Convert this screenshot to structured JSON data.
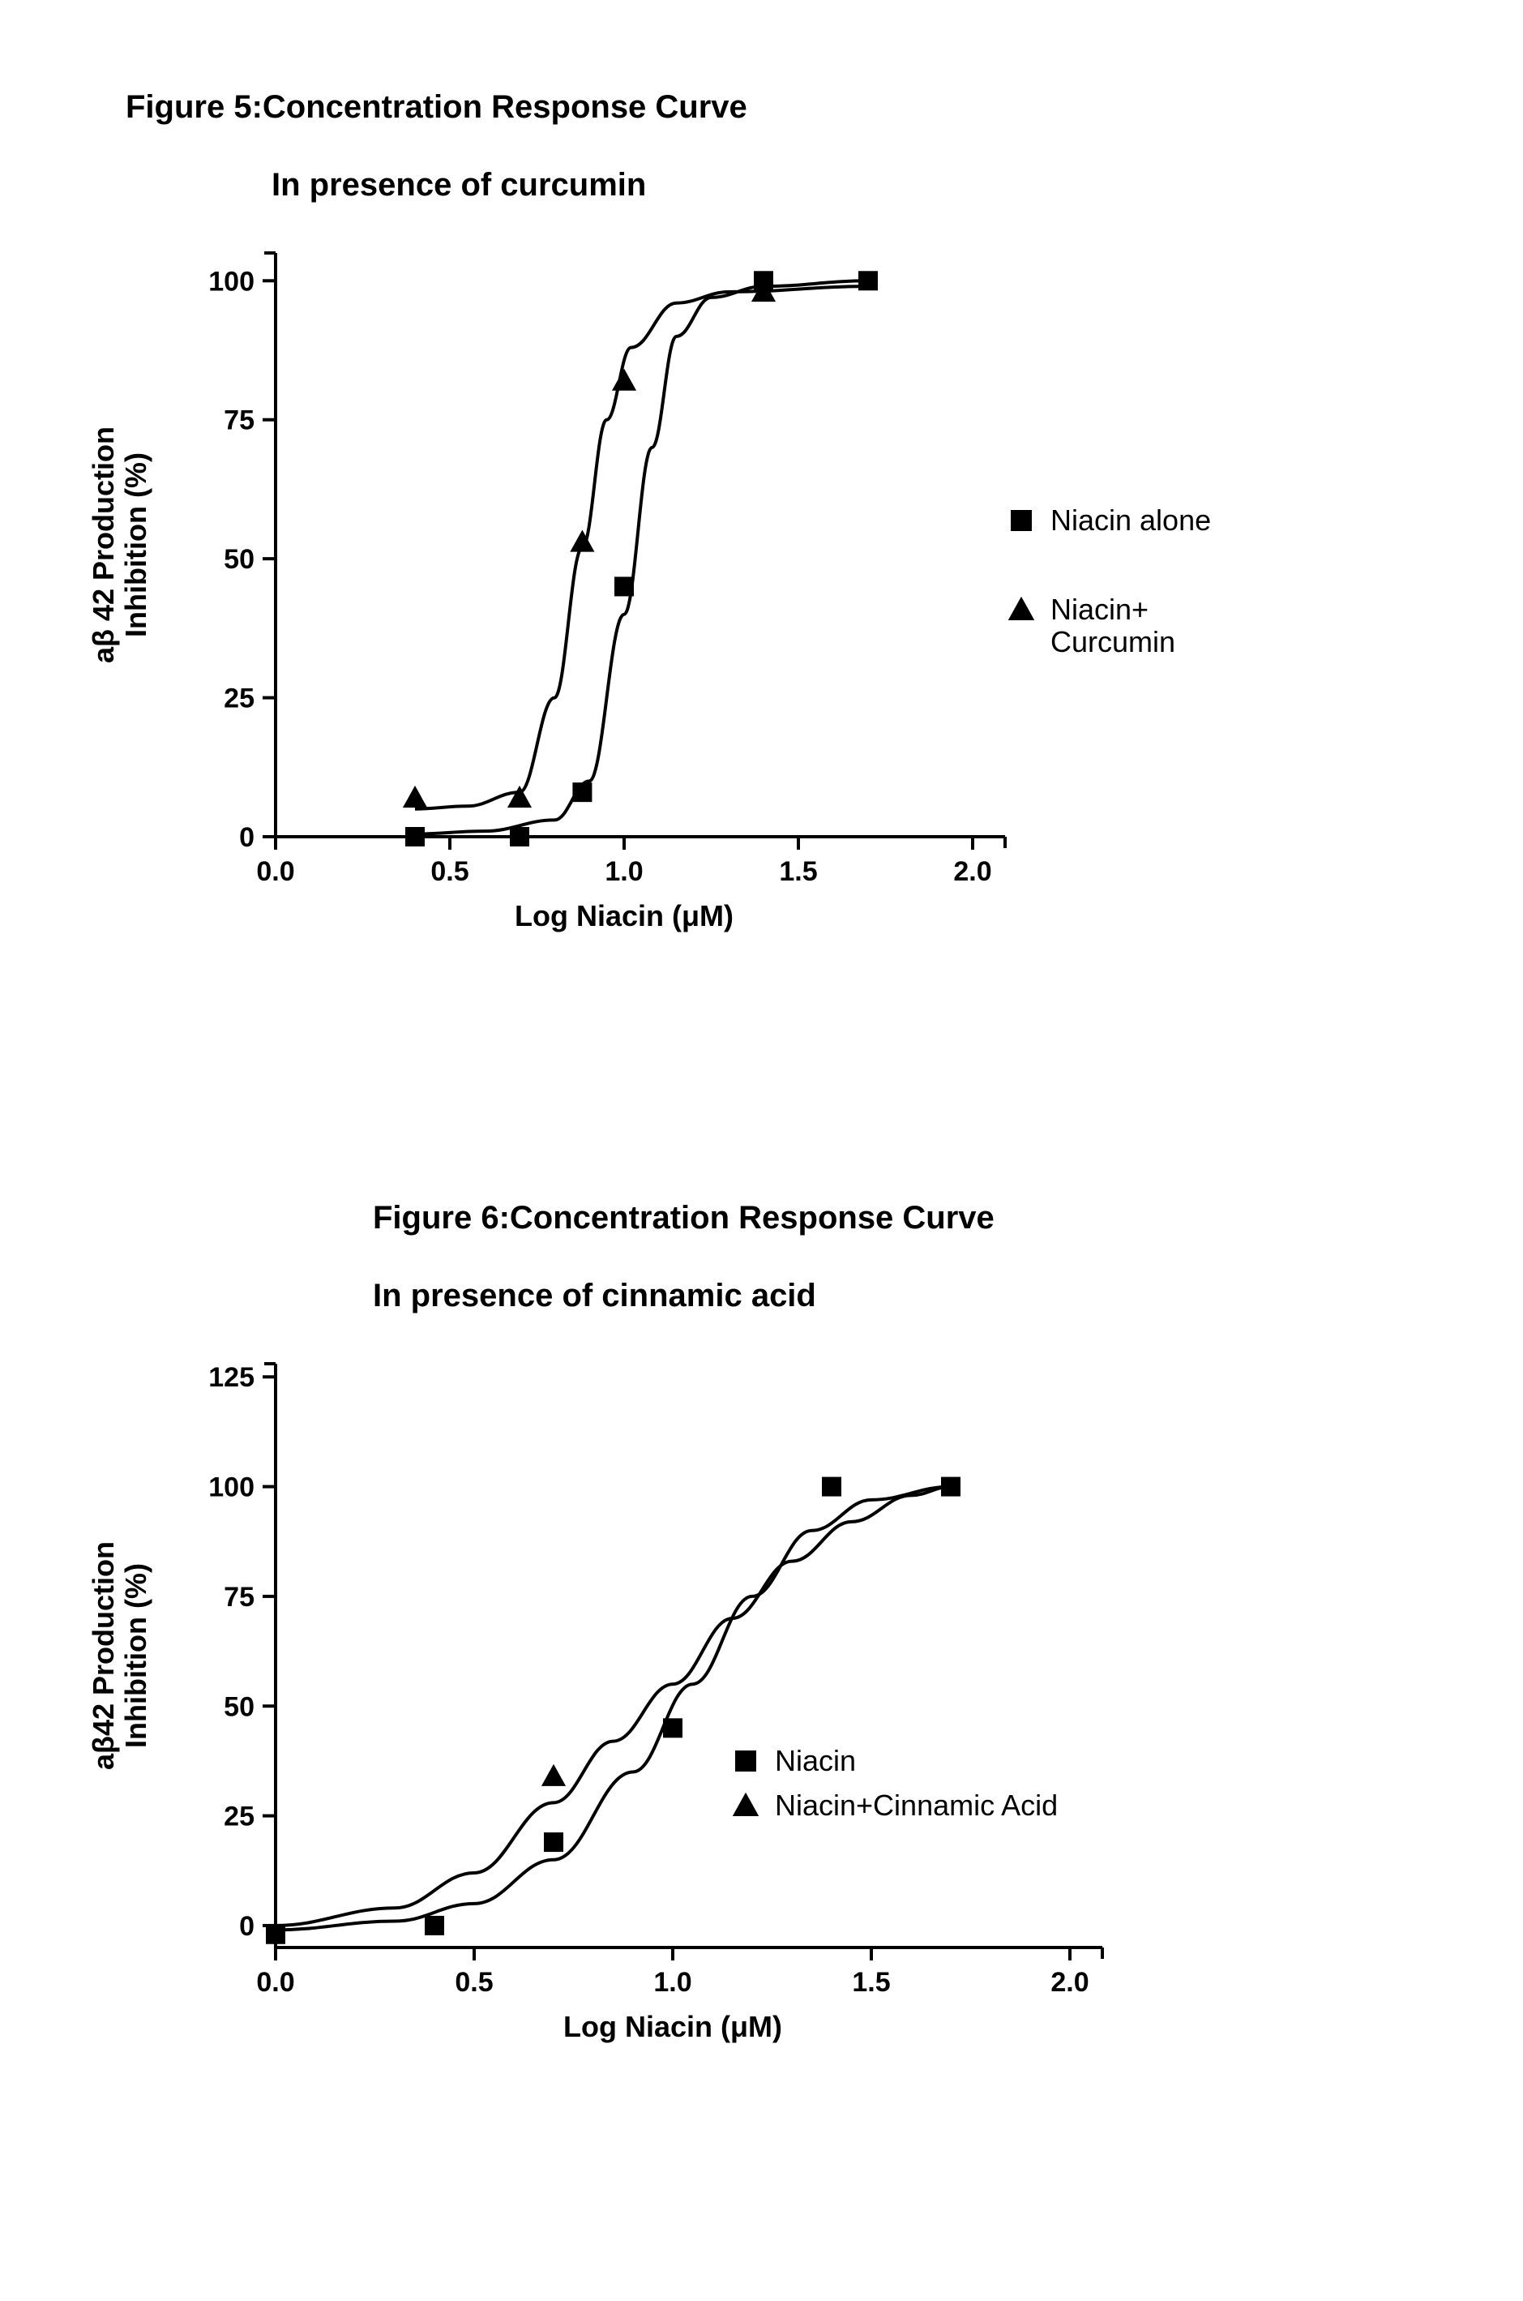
{
  "background_color": "#ffffff",
  "axis_color": "#000000",
  "marker_color": "#000000",
  "line_color": "#000000",
  "line_width": 4,
  "figure5": {
    "title_line1": "Figure 5:Concentration Response Curve",
    "title_line2": "In presence of curcumin",
    "title_fontsize": 40,
    "xlabel": "Log Niacin (μM)",
    "ylabel": "aβ 42 Production\nInhibition (%)",
    "label_fontsize": 36,
    "tick_fontsize": 34,
    "xlim": [
      0.0,
      2.0
    ],
    "ylim": [
      0,
      105
    ],
    "xticks": [
      0.0,
      0.5,
      1.0,
      1.5,
      2.0
    ],
    "yticks": [
      0,
      25,
      50,
      75,
      100
    ],
    "legend_fontsize": 36,
    "legend_items": [
      {
        "marker": "square",
        "label": "Niacin alone"
      },
      {
        "marker": "triangle",
        "label": "Niacin+\nCurcumin"
      }
    ],
    "series_square": {
      "marker": "square",
      "marker_size": 24,
      "data": [
        {
          "x": 0.4,
          "y": 0
        },
        {
          "x": 0.7,
          "y": 0
        },
        {
          "x": 0.88,
          "y": 8
        },
        {
          "x": 1.0,
          "y": 45
        },
        {
          "x": 1.4,
          "y": 100
        },
        {
          "x": 1.7,
          "y": 100
        }
      ],
      "curve": [
        {
          "x": 0.4,
          "y": 0.5
        },
        {
          "x": 0.6,
          "y": 1
        },
        {
          "x": 0.8,
          "y": 3
        },
        {
          "x": 0.9,
          "y": 10
        },
        {
          "x": 1.0,
          "y": 40
        },
        {
          "x": 1.08,
          "y": 70
        },
        {
          "x": 1.15,
          "y": 90
        },
        {
          "x": 1.25,
          "y": 97
        },
        {
          "x": 1.4,
          "y": 99
        },
        {
          "x": 1.7,
          "y": 100
        }
      ]
    },
    "series_triangle": {
      "marker": "triangle",
      "marker_size": 26,
      "data": [
        {
          "x": 0.4,
          "y": 7
        },
        {
          "x": 0.7,
          "y": 7
        },
        {
          "x": 0.88,
          "y": 53
        },
        {
          "x": 1.0,
          "y": 82
        },
        {
          "x": 1.4,
          "y": 98
        }
      ],
      "curve": [
        {
          "x": 0.4,
          "y": 5
        },
        {
          "x": 0.55,
          "y": 5.5
        },
        {
          "x": 0.7,
          "y": 8
        },
        {
          "x": 0.8,
          "y": 25
        },
        {
          "x": 0.88,
          "y": 52
        },
        {
          "x": 0.95,
          "y": 75
        },
        {
          "x": 1.02,
          "y": 88
        },
        {
          "x": 1.15,
          "y": 96
        },
        {
          "x": 1.3,
          "y": 98
        },
        {
          "x": 1.7,
          "y": 99
        }
      ]
    }
  },
  "figure6": {
    "title_line1": "Figure 6:Concentration Response Curve",
    "title_line2": "In presence of cinnamic acid",
    "title_fontsize": 40,
    "xlabel": "Log Niacin (μM)",
    "ylabel": "aβ42 Production\nInhibition (%)",
    "label_fontsize": 36,
    "tick_fontsize": 34,
    "xlim": [
      0.0,
      2.0
    ],
    "ylim": [
      -5,
      128
    ],
    "xticks": [
      0.0,
      0.5,
      1.0,
      1.5,
      2.0
    ],
    "yticks": [
      0,
      25,
      50,
      75,
      100,
      125
    ],
    "legend_fontsize": 36,
    "legend_items": [
      {
        "marker": "square",
        "label": "Niacin"
      },
      {
        "marker": "triangle",
        "label": "Niacin+Cinnamic Acid"
      }
    ],
    "series_square": {
      "marker": "square",
      "marker_size": 24,
      "data": [
        {
          "x": 0.0,
          "y": -2
        },
        {
          "x": 0.4,
          "y": 0
        },
        {
          "x": 0.7,
          "y": 19
        },
        {
          "x": 1.0,
          "y": 45
        },
        {
          "x": 1.4,
          "y": 100
        },
        {
          "x": 1.7,
          "y": 100
        }
      ],
      "curve": [
        {
          "x": 0.0,
          "y": -1
        },
        {
          "x": 0.3,
          "y": 1
        },
        {
          "x": 0.5,
          "y": 5
        },
        {
          "x": 0.7,
          "y": 15
        },
        {
          "x": 0.9,
          "y": 35
        },
        {
          "x": 1.05,
          "y": 55
        },
        {
          "x": 1.2,
          "y": 75
        },
        {
          "x": 1.35,
          "y": 90
        },
        {
          "x": 1.5,
          "y": 97
        },
        {
          "x": 1.7,
          "y": 100
        }
      ]
    },
    "series_triangle": {
      "marker": "triangle",
      "marker_size": 26,
      "data": [
        {
          "x": 0.7,
          "y": 34
        }
      ],
      "curve": [
        {
          "x": 0.0,
          "y": 0
        },
        {
          "x": 0.3,
          "y": 4
        },
        {
          "x": 0.5,
          "y": 12
        },
        {
          "x": 0.7,
          "y": 28
        },
        {
          "x": 0.85,
          "y": 42
        },
        {
          "x": 1.0,
          "y": 55
        },
        {
          "x": 1.15,
          "y": 70
        },
        {
          "x": 1.3,
          "y": 83
        },
        {
          "x": 1.45,
          "y": 92
        },
        {
          "x": 1.6,
          "y": 98
        },
        {
          "x": 1.7,
          "y": 100
        }
      ]
    }
  }
}
